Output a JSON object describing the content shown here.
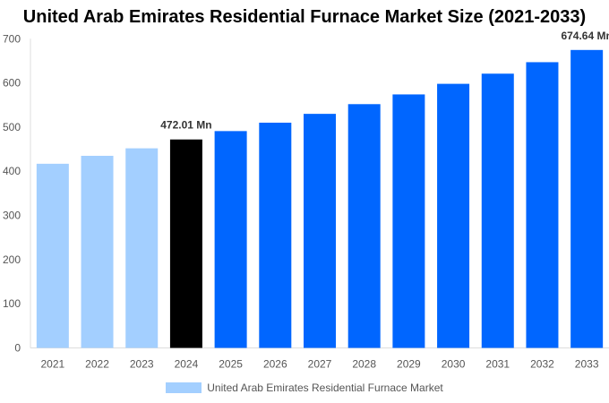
{
  "chart_data": {
    "type": "bar",
    "title": "United Arab Emirates Residential Furnace Market Size (2021-2033)",
    "categories": [
      "2021",
      "2022",
      "2023",
      "2024",
      "2025",
      "2026",
      "2027",
      "2028",
      "2029",
      "2030",
      "2031",
      "2032",
      "2033"
    ],
    "series": [
      {
        "name": "United Arab Emirates Residential Furnace Market",
        "values": [
          417,
          435,
          452,
          472.01,
          491,
          510,
          530,
          552,
          574,
          598,
          621,
          647,
          674.64
        ]
      }
    ],
    "data_labels": {
      "3": "472.01 Mn",
      "12": "674.64 Mn"
    },
    "ylim": [
      0,
      700
    ],
    "yticks": [
      0,
      100,
      200,
      300,
      400,
      500,
      600,
      700
    ],
    "grid": false,
    "legend_position": "bottom",
    "colors": {
      "historical": "#a3cfff",
      "base_year": "#000000",
      "forecast": "#0066ff"
    },
    "bar_color_groups": [
      "historical",
      "historical",
      "historical",
      "base_year",
      "forecast",
      "forecast",
      "forecast",
      "forecast",
      "forecast",
      "forecast",
      "forecast",
      "forecast",
      "forecast"
    ]
  }
}
